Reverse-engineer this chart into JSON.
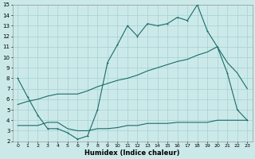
{
  "xlabel": "Humidex (Indice chaleur)",
  "xlim": [
    -0.5,
    23.5
  ],
  "ylim": [
    2,
    15
  ],
  "xticks": [
    0,
    1,
    2,
    3,
    4,
    5,
    6,
    7,
    8,
    9,
    10,
    11,
    12,
    13,
    14,
    15,
    16,
    17,
    18,
    19,
    20,
    21,
    22,
    23
  ],
  "yticks": [
    2,
    3,
    4,
    5,
    6,
    7,
    8,
    9,
    10,
    11,
    12,
    13,
    14,
    15
  ],
  "bg_color": "#cce9e9",
  "grid_color": "#aad4d4",
  "line_color": "#1a6b6b",
  "line1_x": [
    0,
    1,
    2,
    3,
    4,
    5,
    6,
    7,
    8,
    9,
    10,
    11,
    12,
    13,
    14,
    15,
    16,
    17,
    18,
    19,
    20,
    21,
    22,
    23
  ],
  "line1_y": [
    8.0,
    6.2,
    4.5,
    3.2,
    3.2,
    2.8,
    2.2,
    2.5,
    5.0,
    9.5,
    11.2,
    13.0,
    12.0,
    13.2,
    13.0,
    13.2,
    13.8,
    13.5,
    15.0,
    12.5,
    11.0,
    8.5,
    5.0,
    4.0
  ],
  "line2_x": [
    0,
    1,
    2,
    3,
    4,
    5,
    6,
    7,
    8,
    9,
    10,
    11,
    12,
    13,
    14,
    15,
    16,
    17,
    18,
    19,
    20,
    21,
    22,
    23
  ],
  "line2_y": [
    3.5,
    3.5,
    3.5,
    3.8,
    3.8,
    3.2,
    3.0,
    3.0,
    3.2,
    3.2,
    3.3,
    3.5,
    3.5,
    3.7,
    3.7,
    3.7,
    3.8,
    3.8,
    3.8,
    3.8,
    4.0,
    4.0,
    4.0,
    4.0
  ],
  "line3_x": [
    0,
    1,
    2,
    3,
    4,
    5,
    6,
    7,
    8,
    9,
    10,
    11,
    12,
    13,
    14,
    15,
    16,
    17,
    18,
    19,
    20,
    21,
    22,
    23
  ],
  "line3_y": [
    5.5,
    5.8,
    6.0,
    6.3,
    6.5,
    6.5,
    6.5,
    6.8,
    7.2,
    7.5,
    7.8,
    8.0,
    8.3,
    8.7,
    9.0,
    9.3,
    9.6,
    9.8,
    10.2,
    10.5,
    11.0,
    9.5,
    8.5,
    7.0
  ]
}
